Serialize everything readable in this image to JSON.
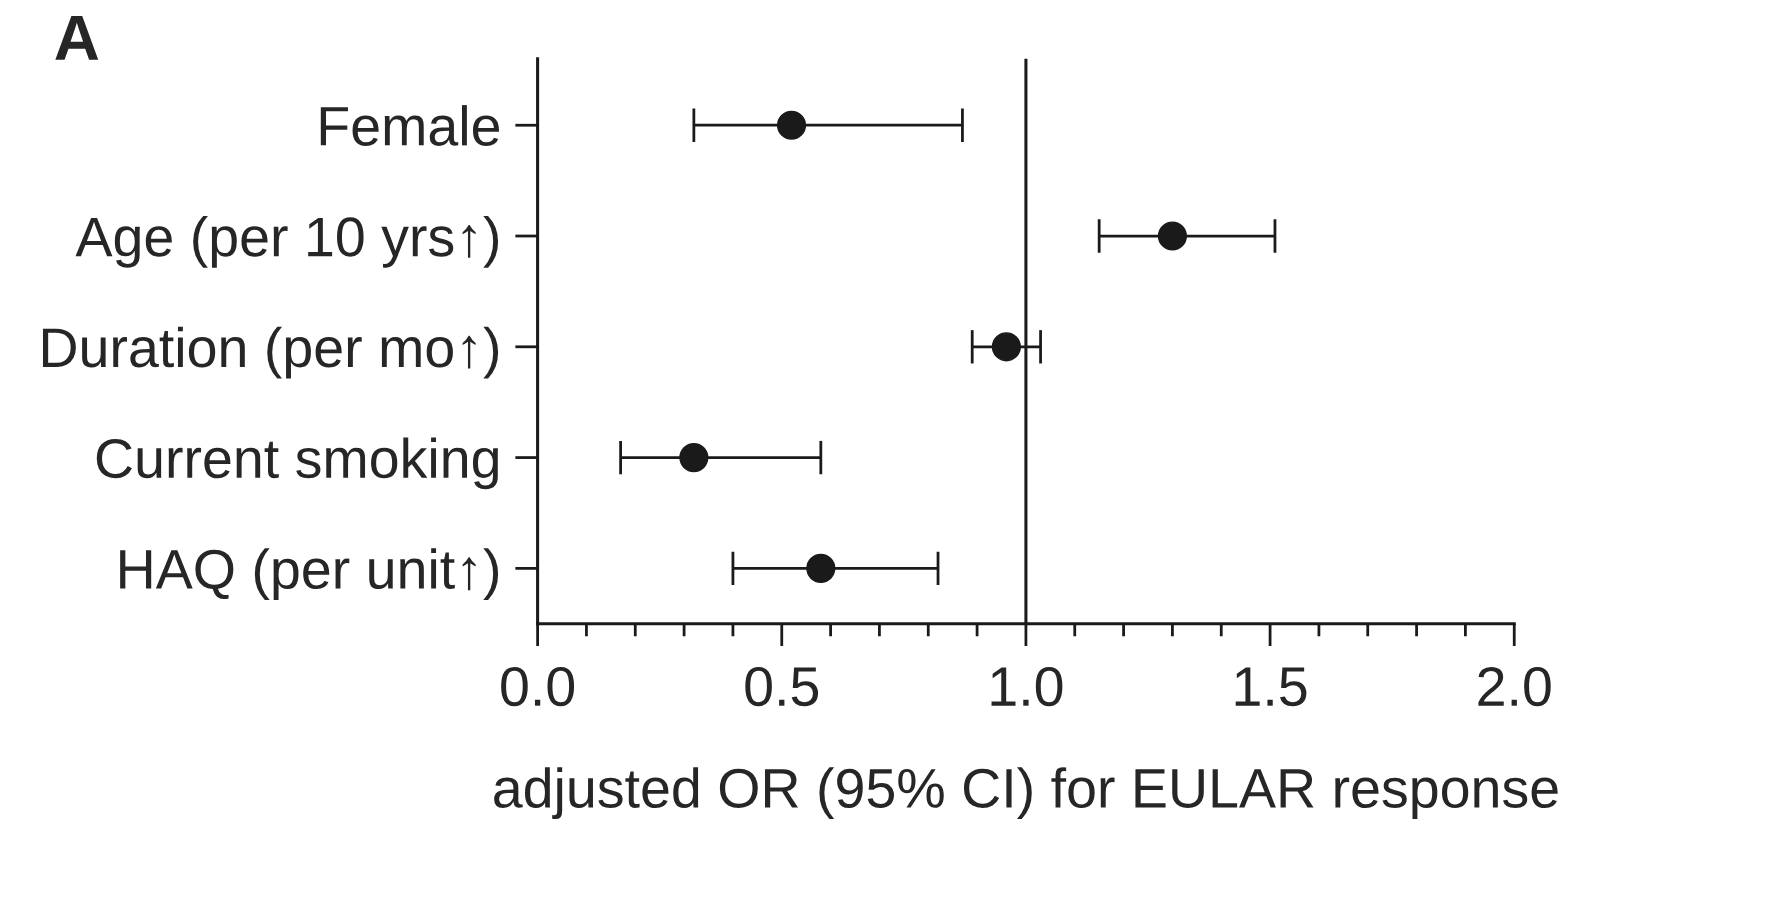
{
  "chart_data": {
    "type": "scatter",
    "orientation": "horizontal",
    "categories": [
      "Female",
      "Age (per 10 yrs↑)",
      "Duration (per mo↑)",
      "Current smoking",
      "HAQ (per unit↑)"
    ],
    "values": [
      0.52,
      1.3,
      0.96,
      0.32,
      0.58
    ],
    "errors": [
      [
        0.32,
        0.87
      ],
      [
        1.15,
        1.51
      ],
      [
        0.89,
        1.03
      ],
      [
        0.17,
        0.58
      ],
      [
        0.4,
        0.82
      ]
    ],
    "color": "#1a1a1a",
    "marker": "circle",
    "xlim": [
      0,
      2
    ],
    "xticks": [
      {
        "value": 0,
        "label": "0.0"
      },
      {
        "value": 0.1,
        "label": null
      },
      {
        "value": 0.2,
        "label": null
      },
      {
        "value": 0.3,
        "label": null
      },
      {
        "value": 0.4,
        "label": null
      },
      {
        "value": 0.5,
        "label": "0.5"
      },
      {
        "value": 0.6,
        "label": null
      },
      {
        "value": 0.7,
        "label": null
      },
      {
        "value": 0.8,
        "label": null
      },
      {
        "value": 0.9,
        "label": null
      },
      {
        "value": 1.0,
        "label": "1.0"
      },
      {
        "value": 1.1,
        "label": null
      },
      {
        "value": 1.2,
        "label": null
      },
      {
        "value": 1.3,
        "label": null
      },
      {
        "value": 1.4,
        "label": null
      },
      {
        "value": 1.5,
        "label": "1.5"
      },
      {
        "value": 1.6,
        "label": null
      },
      {
        "value": 1.7,
        "label": null
      },
      {
        "value": 1.8,
        "label": null
      },
      {
        "value": 1.9,
        "label": null
      },
      {
        "value": 2.0,
        "label": "2.0"
      }
    ],
    "ref_lines": [
      {
        "axis": "x",
        "value": 1.0,
        "color": "#1a1a1a"
      }
    ],
    "xlabel": "adjusted OR (95% CI) for EULAR response",
    "annotations": [
      "A"
    ],
    "grid": false
  }
}
